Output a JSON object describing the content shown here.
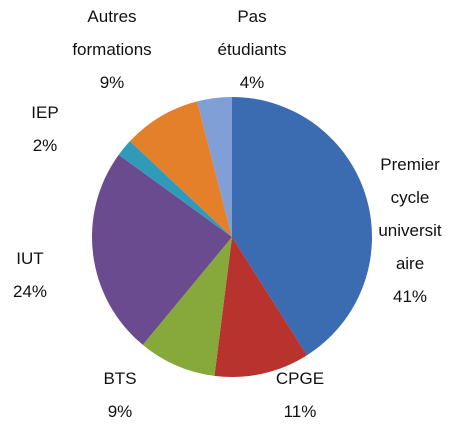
{
  "chart_data": {
    "type": "pie",
    "categories": [
      "Premier cycle universitaire",
      "CPGE",
      "BTS",
      "IUT",
      "IEP",
      "Autres formations",
      "Pas étudiants"
    ],
    "values": [
      41,
      11,
      9,
      24,
      2,
      9,
      4
    ],
    "value_labels": [
      "41%",
      "11%",
      "9%",
      "24%",
      "2%",
      "9%",
      "4%"
    ],
    "colors": [
      "#3b6bb0",
      "#b8322e",
      "#87a83b",
      "#6b4b8f",
      "#2f9bb9",
      "#e5802a",
      "#7f9fd6"
    ]
  }
}
